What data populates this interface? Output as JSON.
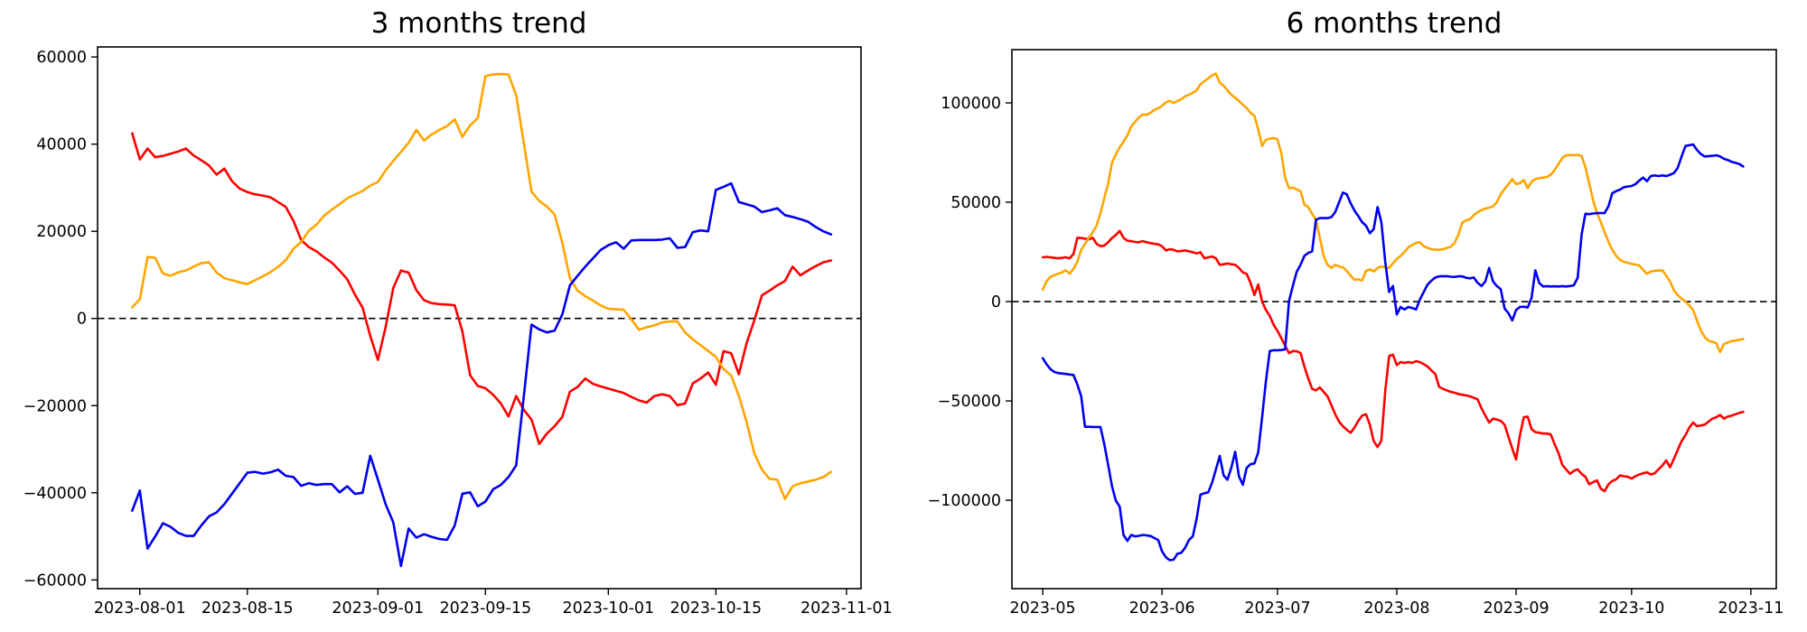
{
  "figure": {
    "background": "#ffffff"
  },
  "chart_data": [
    {
      "type": "line",
      "title": "3 months trend",
      "start_date": "2023-07-31",
      "x_tick_labels": [
        "2023-08-01",
        "2023-08-15",
        "2023-09-01",
        "2023-09-15",
        "2023-10-01",
        "2023-10-15",
        "2023-11-01"
      ],
      "x_tick_days": [
        1,
        15,
        32,
        46,
        62,
        76,
        93
      ],
      "y_tick_labels": [
        "60000",
        "40000",
        "20000",
        "0",
        "−20000",
        "−40000",
        "−60000"
      ],
      "y_tick_values": [
        60000,
        40000,
        20000,
        0,
        -20000,
        -40000,
        -60000
      ],
      "ylim": [
        -62000,
        62300
      ],
      "xlim_days": [
        -4.5,
        94.9
      ],
      "zero_line_dashed": true,
      "grid": false,
      "legend": null,
      "series": [
        {
          "name": "red",
          "color": "#ff0000",
          "values": [
            42500,
            36500,
            39000,
            37000,
            37300,
            37800,
            38300,
            39000,
            37400,
            36300,
            35100,
            33000,
            34400,
            31500,
            29800,
            29000,
            28500,
            28200,
            27800,
            26700,
            25600,
            22400,
            18000,
            16400,
            15400,
            14000,
            12800,
            11000,
            9000,
            5500,
            2500,
            -4000,
            -9500,
            -2000,
            7000,
            11000,
            10500,
            6500,
            4200,
            3500,
            3300,
            3200,
            3000,
            -3000,
            -13000,
            -15500,
            -16000,
            -17500,
            -19500,
            -22500,
            -17800,
            -21000,
            -23200,
            -28800,
            -26400,
            -24700,
            -22600,
            -16800,
            -15700,
            -13800,
            -15000,
            -15600,
            -16100,
            -16600,
            -17100,
            -18000,
            -18800,
            -19300,
            -17800,
            -17400,
            -17800,
            -19900,
            -19500,
            -14900,
            -13800,
            -12400,
            -15200,
            -7500,
            -8000,
            -12800,
            -5700,
            -500,
            5300,
            6400,
            7600,
            8600,
            11900,
            9900,
            11000,
            12000,
            12900,
            13300
          ]
        },
        {
          "name": "orange",
          "color": "#ffa500",
          "values": [
            2550,
            4400,
            14100,
            13900,
            10350,
            9800,
            10600,
            11000,
            11900,
            12700,
            12900,
            10500,
            9250,
            8760,
            8280,
            7870,
            8760,
            9660,
            10620,
            11860,
            13390,
            16000,
            17530,
            20140,
            21530,
            23600,
            24980,
            26220,
            27600,
            28420,
            29250,
            30490,
            31320,
            33950,
            36150,
            38230,
            40300,
            43260,
            40840,
            42230,
            43260,
            44150,
            45680,
            41670,
            44290,
            46000,
            55600,
            56000,
            56100,
            56000,
            51200,
            40200,
            29100,
            27000,
            25700,
            23900,
            17400,
            9250,
            6360,
            5100,
            4100,
            3000,
            2200,
            2100,
            2000,
            -200,
            -2600,
            -2000,
            -1600,
            -900,
            -700,
            -700,
            -3200,
            -4800,
            -6100,
            -7450,
            -8800,
            -11600,
            -13100,
            -17800,
            -23700,
            -30900,
            -34700,
            -36800,
            -37000,
            -41400,
            -38500,
            -37800,
            -37400,
            -37000,
            -36400,
            -35200
          ]
        },
        {
          "name": "blue",
          "color": "#0000ee",
          "values": [
            -44100,
            -39500,
            -52800,
            -50000,
            -47000,
            -47800,
            -49200,
            -49900,
            -49900,
            -47500,
            -45400,
            -44500,
            -42600,
            -40200,
            -37800,
            -35400,
            -35200,
            -35600,
            -35300,
            -34700,
            -36100,
            -36400,
            -38400,
            -37800,
            -38200,
            -38000,
            -38000,
            -39900,
            -38500,
            -40250,
            -40000,
            -31500,
            -37000,
            -42600,
            -46800,
            -56800,
            -48200,
            -50300,
            -49500,
            -50100,
            -50600,
            -50800,
            -47500,
            -40200,
            -39900,
            -43100,
            -42000,
            -39200,
            -38200,
            -36400,
            -33700,
            -17800,
            -1400,
            -2500,
            -3200,
            -2800,
            900,
            7600,
            9800,
            11900,
            13800,
            15700,
            16800,
            17500,
            16000,
            17900,
            18000,
            18000,
            18000,
            18100,
            18400,
            16200,
            16400,
            19800,
            20200,
            20000,
            29500,
            30200,
            31000,
            26700,
            26200,
            25700,
            24400,
            24800,
            25300,
            23700,
            23300,
            22800,
            22200,
            21000,
            20000,
            19300
          ]
        }
      ]
    },
    {
      "type": "line",
      "title": "6 months trend",
      "start_date": "2023-05-01",
      "x_tick_labels": [
        "2023-05",
        "2023-06",
        "2023-07",
        "2023-08",
        "2023-09",
        "2023-10",
        "2023-11"
      ],
      "x_tick_days": [
        0,
        31,
        61,
        92,
        123,
        153,
        184
      ],
      "y_tick_labels": [
        "100000",
        "50000",
        "0",
        "−50000",
        "−100000"
      ],
      "y_tick_values": [
        100000,
        50000,
        0,
        -50000,
        -100000
      ],
      "ylim": [
        -144500,
        126800
      ],
      "xlim_days": [
        -8.0,
        190.6
      ],
      "zero_line_dashed": true,
      "grid": false,
      "legend": null,
      "series": [
        {
          "name": "red",
          "color": "#ff0000",
          "values": [
            22270,
            22500,
            22300,
            22000,
            21800,
            22000,
            22300,
            21800,
            24000,
            32100,
            32000,
            31700,
            31350,
            32100,
            29100,
            27850,
            28200,
            29850,
            32000,
            33500,
            35600,
            32100,
            30600,
            30400,
            30000,
            29850,
            30400,
            29850,
            29400,
            29100,
            28800,
            27850,
            25750,
            26350,
            26050,
            25300,
            25500,
            25750,
            25300,
            24850,
            24250,
            24850,
            21800,
            22300,
            22700,
            21800,
            18500,
            18800,
            19200,
            18800,
            18500,
            16950,
            14700,
            13950,
            9400,
            3300,
            8600,
            0,
            -4200,
            -7200,
            -11700,
            -14700,
            -18450,
            -22200,
            -25950,
            -24900,
            -25000,
            -25950,
            -32700,
            -38700,
            -43950,
            -44700,
            -43200,
            -45450,
            -47700,
            -52200,
            -56700,
            -60450,
            -62700,
            -64500,
            -66000,
            -63450,
            -60000,
            -57450,
            -56700,
            -62000,
            -70200,
            -73200,
            -70000,
            -45000,
            -27450,
            -26700,
            -32000,
            -30450,
            -30900,
            -30450,
            -30900,
            -30000,
            -30450,
            -31500,
            -32700,
            -34650,
            -36450,
            -42900,
            -44000,
            -44700,
            -45450,
            -45900,
            -46500,
            -46950,
            -47200,
            -47700,
            -48450,
            -49200,
            -53700,
            -57450,
            -60900,
            -58950,
            -59400,
            -60000,
            -62000,
            -67950,
            -73950,
            -79500,
            -67200,
            -58200,
            -57900,
            -64200,
            -65700,
            -66000,
            -66450,
            -66450,
            -66900,
            -71700,
            -76200,
            -82200,
            -84450,
            -86700,
            -85200,
            -84450,
            -86700,
            -88200,
            -91950,
            -90900,
            -90000,
            -94200,
            -95400,
            -91950,
            -90300,
            -89400,
            -87450,
            -87900,
            -88200,
            -89100,
            -87900,
            -87000,
            -86400,
            -85950,
            -87000,
            -86400,
            -84450,
            -82500,
            -79950,
            -83400,
            -79200,
            -74700,
            -70200,
            -67200,
            -63450,
            -60900,
            -62700,
            -62400,
            -61950,
            -60450,
            -58950,
            -58200,
            -57000,
            -58950,
            -57900,
            -57450,
            -56700,
            -56000,
            -55500
          ]
        },
        {
          "name": "orange",
          "color": "#ffa500",
          "values": [
            6000,
            10200,
            12400,
            13300,
            14000,
            14700,
            15800,
            14000,
            16500,
            20000,
            26000,
            29000,
            32100,
            35000,
            38200,
            44500,
            52000,
            59400,
            70000,
            74000,
            77600,
            80500,
            83600,
            88200,
            90500,
            92700,
            94200,
            94000,
            95000,
            96500,
            97300,
            98500,
            100300,
            101000,
            100000,
            101000,
            101800,
            103300,
            104100,
            105100,
            106400,
            109400,
            110900,
            112400,
            113900,
            114700,
            110200,
            108600,
            106400,
            104100,
            102600,
            101000,
            99100,
            97500,
            95000,
            93500,
            86700,
            78300,
            81400,
            82000,
            82300,
            81700,
            74550,
            62400,
            57100,
            57400,
            56400,
            55600,
            48800,
            47600,
            44200,
            41200,
            32100,
            23000,
            18500,
            16950,
            18500,
            17700,
            17250,
            15500,
            13000,
            11000,
            11200,
            10600,
            15450,
            16200,
            15150,
            16950,
            17700,
            17250,
            16950,
            19250,
            21500,
            23000,
            25000,
            27270,
            28500,
            29500,
            29850,
            27870,
            27000,
            26350,
            26200,
            26050,
            26350,
            27000,
            27600,
            29500,
            33600,
            39700,
            40900,
            41500,
            43500,
            45000,
            46050,
            46800,
            47270,
            48000,
            50000,
            54100,
            56700,
            59100,
            61650,
            59100,
            59700,
            61200,
            57100,
            60300,
            61650,
            62100,
            62400,
            62700,
            63900,
            66200,
            69250,
            72300,
            73650,
            73800,
            73650,
            73800,
            73350,
            67750,
            59400,
            51100,
            44550,
            40000,
            35000,
            30000,
            26000,
            23000,
            21000,
            20000,
            19500,
            19000,
            18600,
            18200,
            16000,
            13950,
            15150,
            15500,
            15650,
            15750,
            13000,
            10150,
            5600,
            3300,
            1500,
            0,
            -2000,
            -4200,
            -9550,
            -14550,
            -17850,
            -19700,
            -20300,
            -20900,
            -25450,
            -21350,
            -20600,
            -19850,
            -19600,
            -19200,
            -18950
          ]
        },
        {
          "name": "blue",
          "color": "#0000ee",
          "values": [
            -28500,
            -31500,
            -34000,
            -35400,
            -36000,
            -36200,
            -36450,
            -36700,
            -37000,
            -41700,
            -47700,
            -63000,
            -63000,
            -63100,
            -63100,
            -63150,
            -71700,
            -82200,
            -93000,
            -100200,
            -103200,
            -117450,
            -120450,
            -117450,
            -118200,
            -117900,
            -117450,
            -117700,
            -118000,
            -119000,
            -120000,
            -125700,
            -128700,
            -130200,
            -129900,
            -126900,
            -126450,
            -123900,
            -120000,
            -118200,
            -109200,
            -97200,
            -96450,
            -96000,
            -91200,
            -84450,
            -77700,
            -87450,
            -89700,
            -83700,
            -75600,
            -88000,
            -92250,
            -83700,
            -81900,
            -81450,
            -75900,
            -58200,
            -40200,
            -24900,
            -24500,
            -24500,
            -24400,
            -24000,
            300,
            8000,
            15000,
            18500,
            23000,
            24500,
            25300,
            41200,
            42000,
            42000,
            42000,
            42500,
            45000,
            50000,
            54850,
            54000,
            49500,
            45800,
            43000,
            40000,
            38200,
            34400,
            36400,
            47600,
            40000,
            20000,
            4850,
            7850,
            -6500,
            -2700,
            -4000,
            -2700,
            -3200,
            -4000,
            1000,
            4850,
            8600,
            10500,
            12100,
            12700,
            12800,
            12800,
            12500,
            12400,
            12700,
            12700,
            12000,
            11700,
            12100,
            9400,
            7850,
            10150,
            16950,
            10150,
            7850,
            6350,
            -3500,
            -5800,
            -9500,
            -4200,
            -2700,
            -2600,
            -3000,
            1800,
            15750,
            9400,
            7600,
            7800,
            7600,
            7700,
            7600,
            7800,
            7600,
            7850,
            8200,
            12000,
            33600,
            44200,
            44000,
            44300,
            44500,
            44550,
            44550,
            48000,
            54550,
            55600,
            56350,
            57600,
            57900,
            58200,
            59100,
            60900,
            62400,
            60600,
            63200,
            63500,
            63200,
            63500,
            63200,
            63800,
            64700,
            67300,
            73050,
            78300,
            78700,
            79100,
            76350,
            74250,
            73050,
            73200,
            73350,
            73650,
            73050,
            71850,
            71250,
            70350,
            69800,
            69250,
            68000
          ]
        }
      ]
    }
  ]
}
